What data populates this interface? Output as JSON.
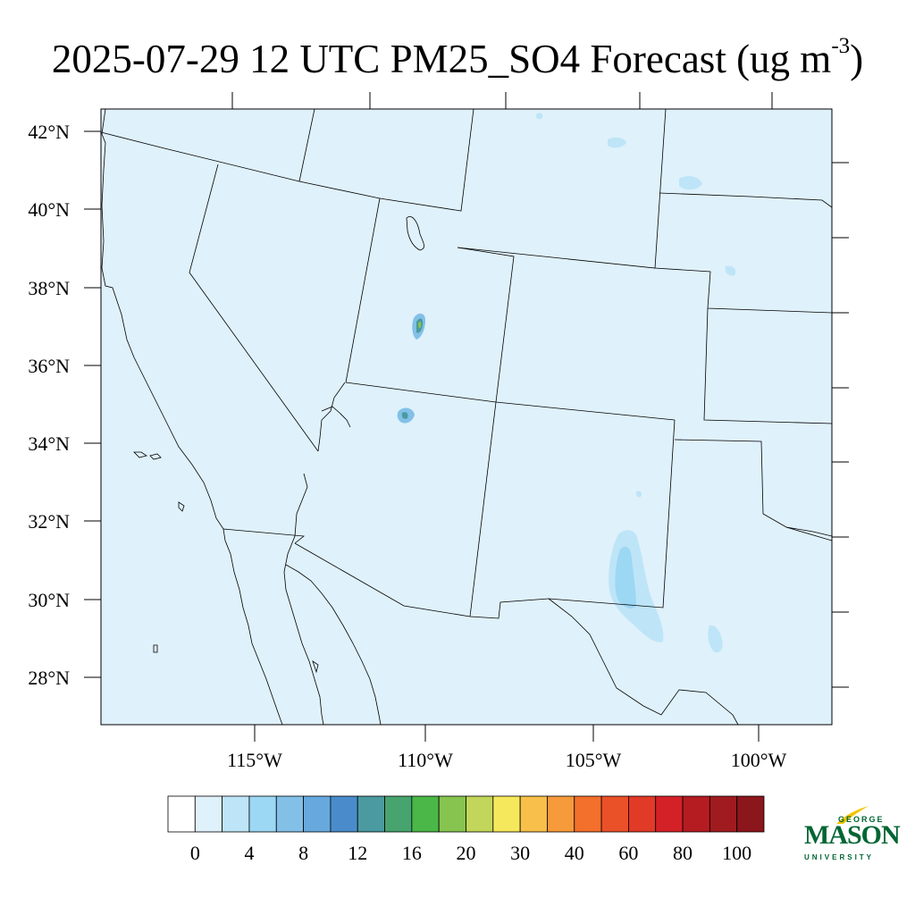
{
  "title": {
    "main": "2025-07-29 12 UTC PM25_SO4 Forecast (ug m",
    "sup": "-3",
    "close": ")"
  },
  "map": {
    "background_color": "#dff1fb",
    "lat_labels": [
      "42°N",
      "40°N",
      "38°N",
      "36°N",
      "34°N",
      "32°N",
      "30°N",
      "28°N"
    ],
    "lon_labels": [
      "115°W",
      "110°W",
      "105°W",
      "100°W"
    ]
  },
  "colorbar": {
    "labels": [
      "0",
      "4",
      "8",
      "12",
      "16",
      "20",
      "30",
      "40",
      "60",
      "80",
      "100"
    ],
    "colors": [
      "#ffffff",
      "#dff1fb",
      "#bde5f7",
      "#9cd7f4",
      "#82c0e8",
      "#67a8dd",
      "#4a8ccb",
      "#4a9aa0",
      "#47a46e",
      "#4bb748",
      "#86c44f",
      "#c1d65a",
      "#f6e85c",
      "#f8bf4a",
      "#f79a3c",
      "#f36f2c",
      "#ea5129",
      "#e13a27",
      "#d42127",
      "#b41c22",
      "#a01b1f",
      "#8b161b"
    ]
  },
  "logo": {
    "top": "GEORGE",
    "main": "MASON",
    "bottom": "UNIVERSITY",
    "color": "#006633",
    "accent": "#f5c400"
  }
}
